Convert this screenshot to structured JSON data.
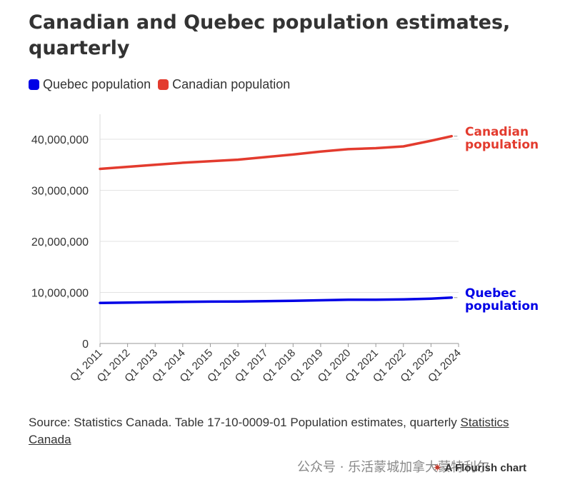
{
  "chart_data": {
    "type": "line",
    "title": "Canadian and Quebec population estimates, quarterly",
    "xlabel": "",
    "ylabel": "",
    "ylim": [
      0,
      45000000
    ],
    "y_ticks": [
      0,
      10000000,
      20000000,
      30000000,
      40000000
    ],
    "y_tick_labels": [
      "0",
      "10,000,000",
      "20,000,000",
      "30,000,000",
      "40,000,000"
    ],
    "x_tick_labels": [
      "Q1 2011",
      "Q1 2012",
      "Q1 2013",
      "Q1 2014",
      "Q1 2015",
      "Q1 2016",
      "Q1 2017",
      "Q1 2018",
      "Q1 2019",
      "Q1 2020",
      "Q1 2021",
      "Q1 2022",
      "Q1 2023",
      "Q1 2024"
    ],
    "grid": true,
    "legend_position": "top-left",
    "series": [
      {
        "name": "Quebec population",
        "label": "Quebec population",
        "color": "#0000e6",
        "x": [
          "Q1 2011",
          "Q1 2012",
          "Q1 2013",
          "Q1 2014",
          "Q1 2015",
          "Q1 2016",
          "Q1 2017",
          "Q1 2018",
          "Q1 2019",
          "Q1 2020",
          "Q1 2021",
          "Q1 2022",
          "Q1 2023",
          "Q4 2023"
        ],
        "values": [
          7950000,
          8020000,
          8090000,
          8140000,
          8190000,
          8230000,
          8290000,
          8370000,
          8460000,
          8560000,
          8580000,
          8630000,
          8780000,
          8980000
        ]
      },
      {
        "name": "Canadian population",
        "label": "Canadian population",
        "color": "#e33b2e",
        "x": [
          "Q1 2011",
          "Q1 2012",
          "Q1 2013",
          "Q1 2014",
          "Q1 2015",
          "Q1 2016",
          "Q1 2017",
          "Q1 2018",
          "Q1 2019",
          "Q1 2020",
          "Q1 2021",
          "Q1 2022",
          "Q1 2023",
          "Q4 2023"
        ],
        "values": [
          34200000,
          34600000,
          35000000,
          35400000,
          35700000,
          36000000,
          36500000,
          37000000,
          37600000,
          38050000,
          38250000,
          38600000,
          39700000,
          40600000
        ]
      }
    ]
  },
  "legend": {
    "items": [
      {
        "label": "Quebec population",
        "color": "#0000e6"
      },
      {
        "label": "Canadian population",
        "color": "#e33b2e"
      }
    ]
  },
  "end_labels": {
    "canada": [
      "Canadian",
      "population"
    ],
    "quebec": [
      "Quebec",
      "population"
    ]
  },
  "source": {
    "text": "Source: Statistics Canada. Table 17-10-0009-01 Population estimates, quarterly ",
    "link": "Statistics Canada"
  },
  "watermark": "公众号 · 乐活蒙城加拿大蒙特利尔",
  "credit": "A Flourish chart"
}
